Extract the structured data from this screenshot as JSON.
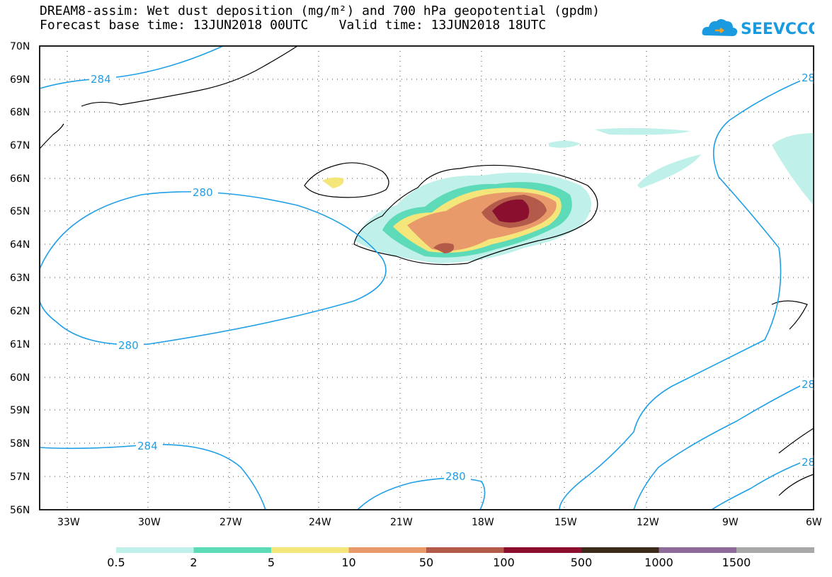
{
  "title": {
    "line1": "DREAM8-assim: Wet dust deposition (mg/m²) and 700 hPa geopotential (gpdm)",
    "line2": "Forecast base time: 13JUN2018 00UTC    Valid time: 13JUN2018 18UTC"
  },
  "logo": {
    "text": "SEEVCCC",
    "icon": "cloud-icon",
    "color": "#1a9be0"
  },
  "map": {
    "lat_labels": [
      "70N",
      "69N",
      "68N",
      "67N",
      "66N",
      "65N",
      "64N",
      "63N",
      "62N",
      "61N",
      "60N",
      "59N",
      "58N",
      "57N",
      "56N"
    ],
    "lon_labels": [
      "33W",
      "30W",
      "27W",
      "24W",
      "21W",
      "18W",
      "15W",
      "12W",
      "9W",
      "6W"
    ],
    "contour_color": "#1f9fe6",
    "contour_labels": [
      "284",
      "280",
      "280",
      "284",
      "280",
      "28",
      "28",
      "28"
    ]
  },
  "legend": {
    "levels": [
      "0.5",
      "2",
      "5",
      "10",
      "50",
      "100",
      "500",
      "1000",
      "1500"
    ],
    "colors": [
      "#bff0ea",
      "#5ddab7",
      "#f4e67a",
      "#e89a6a",
      "#b35a4a",
      "#8a0f2e",
      "#3b2a1a",
      "#8e6a9a",
      "#a8a8a8"
    ]
  }
}
